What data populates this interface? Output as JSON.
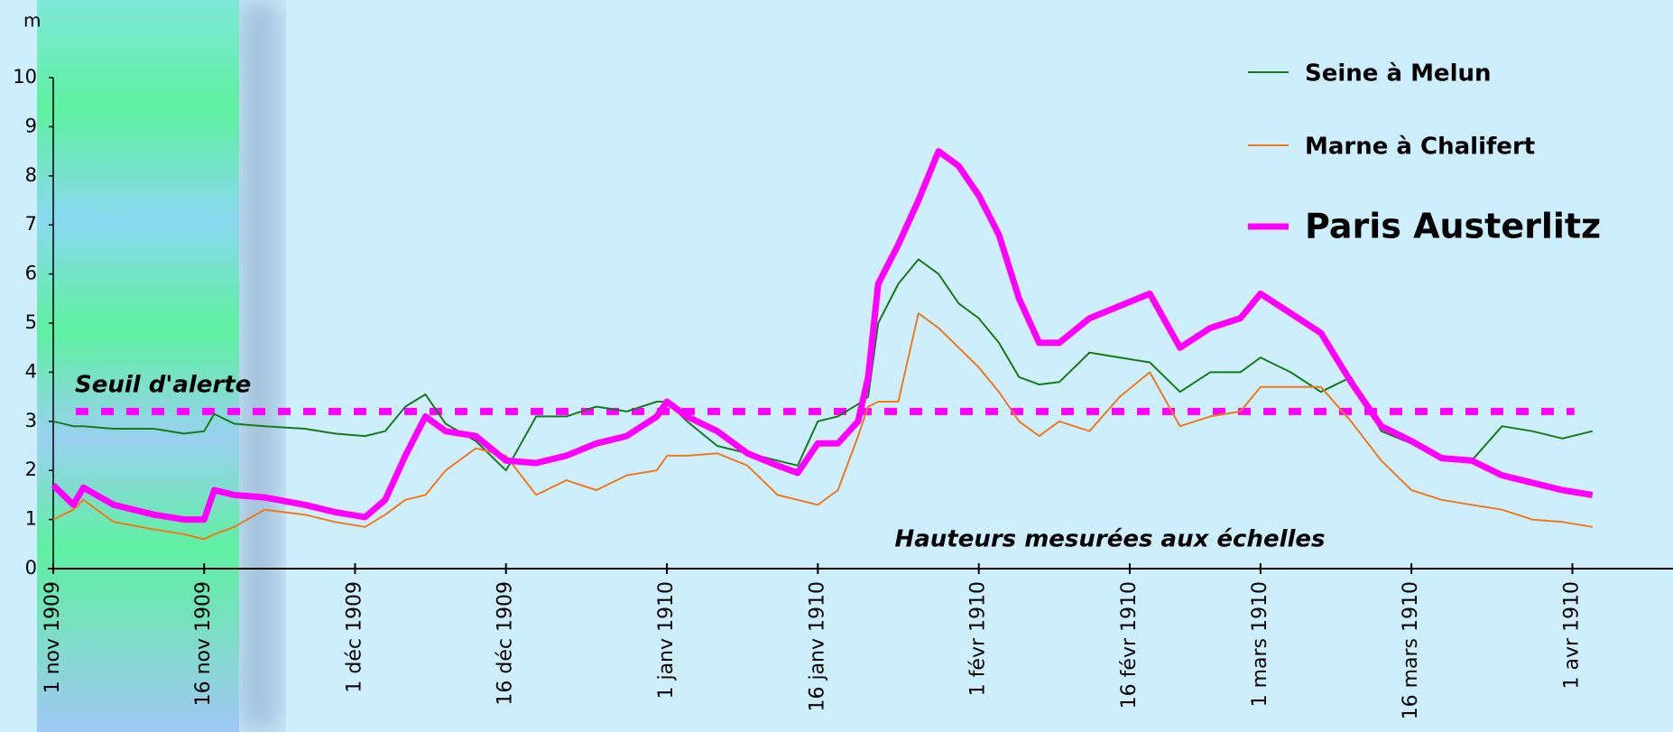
{
  "chart_data": {
    "type": "line",
    "y_unit": "m",
    "x": [
      "1909-11-01",
      "1909-11-03",
      "1909-11-04",
      "1909-11-07",
      "1909-11-11",
      "1909-11-14",
      "1909-11-16",
      "1909-11-17",
      "1909-11-19",
      "1909-11-22",
      "1909-11-26",
      "1909-11-29",
      "1909-12-02",
      "1909-12-04",
      "1909-12-06",
      "1909-12-08",
      "1909-12-10",
      "1909-12-13",
      "1909-12-16",
      "1909-12-19",
      "1909-12-22",
      "1909-12-25",
      "1909-12-28",
      "1909-12-31",
      "1910-01-01",
      "1910-01-03",
      "1910-01-06",
      "1910-01-09",
      "1910-01-12",
      "1910-01-14",
      "1910-01-16",
      "1910-01-18",
      "1910-01-20",
      "1910-01-21",
      "1910-01-22",
      "1910-01-24",
      "1910-01-26",
      "1910-01-28",
      "1910-01-30",
      "1910-02-01",
      "1910-02-03",
      "1910-02-05",
      "1910-02-07",
      "1910-02-09",
      "1910-02-12",
      "1910-02-15",
      "1910-02-18",
      "1910-02-21",
      "1910-02-24",
      "1910-02-27",
      "1910-03-01",
      "1910-03-04",
      "1910-03-07",
      "1910-03-10",
      "1910-03-13",
      "1910-03-16",
      "1910-03-19",
      "1910-03-22",
      "1910-03-25",
      "1910-03-28",
      "1910-03-31",
      "1910-04-03"
    ],
    "series": [
      {
        "name": "Seine à Melun",
        "color": "#1a7a1a",
        "line_width": 2,
        "values": [
          3.0,
          2.9,
          2.9,
          2.85,
          2.85,
          2.75,
          2.8,
          3.15,
          2.95,
          2.9,
          2.85,
          2.75,
          2.7,
          2.8,
          3.3,
          3.55,
          2.95,
          2.6,
          2.0,
          3.1,
          3.1,
          3.3,
          3.2,
          3.4,
          3.4,
          3.0,
          2.5,
          2.35,
          2.2,
          2.1,
          3.0,
          3.1,
          3.35,
          3.5,
          5.0,
          5.8,
          6.3,
          6.0,
          5.4,
          5.1,
          4.6,
          3.9,
          3.75,
          3.8,
          4.4,
          4.3,
          4.2,
          3.6,
          4.0,
          4.0,
          4.3,
          4.0,
          3.6,
          3.9,
          2.8,
          2.55,
          2.3,
          2.2,
          2.9,
          2.8,
          2.65,
          2.8
        ]
      },
      {
        "name": "Marne à Chalifert",
        "color": "#f07a1a",
        "line_width": 2,
        "values": [
          1.0,
          1.2,
          1.4,
          0.95,
          0.8,
          0.7,
          0.6,
          0.7,
          0.85,
          1.2,
          1.1,
          0.95,
          0.85,
          1.1,
          1.4,
          1.5,
          2.0,
          2.45,
          2.3,
          1.5,
          1.8,
          1.6,
          1.9,
          2.0,
          2.3,
          2.3,
          2.35,
          2.1,
          1.5,
          1.4,
          1.3,
          1.6,
          2.7,
          3.3,
          3.4,
          3.4,
          5.2,
          4.9,
          4.5,
          4.1,
          3.6,
          3.0,
          2.7,
          3.0,
          2.8,
          3.5,
          4.0,
          2.9,
          3.1,
          3.2,
          3.7,
          3.7,
          3.7,
          3.0,
          2.2,
          1.6,
          1.4,
          1.3,
          1.2,
          1.0,
          0.95,
          0.85
        ]
      },
      {
        "name": "Paris Austerlitz",
        "color": "#ff00ff",
        "line_width": 7,
        "values": [
          1.7,
          1.3,
          1.65,
          1.3,
          1.1,
          1.0,
          1.0,
          1.6,
          1.5,
          1.45,
          1.3,
          1.15,
          1.05,
          1.4,
          2.3,
          3.1,
          2.8,
          2.7,
          2.2,
          2.15,
          2.3,
          2.55,
          2.7,
          3.1,
          3.4,
          3.1,
          2.8,
          2.35,
          2.1,
          1.95,
          2.55,
          2.55,
          3.0,
          3.9,
          5.8,
          6.6,
          7.5,
          8.5,
          8.2,
          7.6,
          6.8,
          5.5,
          4.6,
          4.6,
          5.1,
          5.35,
          5.6,
          4.5,
          4.9,
          5.1,
          5.6,
          5.2,
          4.8,
          3.8,
          2.9,
          2.6,
          2.25,
          2.2,
          1.9,
          1.75,
          1.6,
          1.5
        ]
      }
    ],
    "threshold": {
      "value": 3.2,
      "label": "Seuil d'alerte",
      "color": "#ff00ff"
    },
    "annotation": "Hauteurs mesurées aux échelles",
    "xlim": [
      "1909-11-01",
      "1910-04-11"
    ],
    "xticks": [
      {
        "value": "1909-11-01",
        "label": "1 nov 1909"
      },
      {
        "value": "1909-11-16",
        "label": "16 nov 1909"
      },
      {
        "value": "1909-12-01",
        "label": "1 déc 1909"
      },
      {
        "value": "1909-12-16",
        "label": "16 déc 1909"
      },
      {
        "value": "1910-01-01",
        "label": "1 janv 1910"
      },
      {
        "value": "1910-01-16",
        "label": "16 janv 1910"
      },
      {
        "value": "1910-02-01",
        "label": "1 févr 1910"
      },
      {
        "value": "1910-02-16",
        "label": "16 févr 1910"
      },
      {
        "value": "1910-03-01",
        "label": "1 mars 1910"
      },
      {
        "value": "1910-03-16",
        "label": "16 mars 1910"
      },
      {
        "value": "1910-04-01",
        "label": "1 avr 1910"
      }
    ],
    "ylim": [
      0,
      10
    ],
    "yticks": [
      0,
      1,
      2,
      3,
      4,
      5,
      6,
      7,
      8,
      9,
      10
    ],
    "legend": "top-right"
  }
}
